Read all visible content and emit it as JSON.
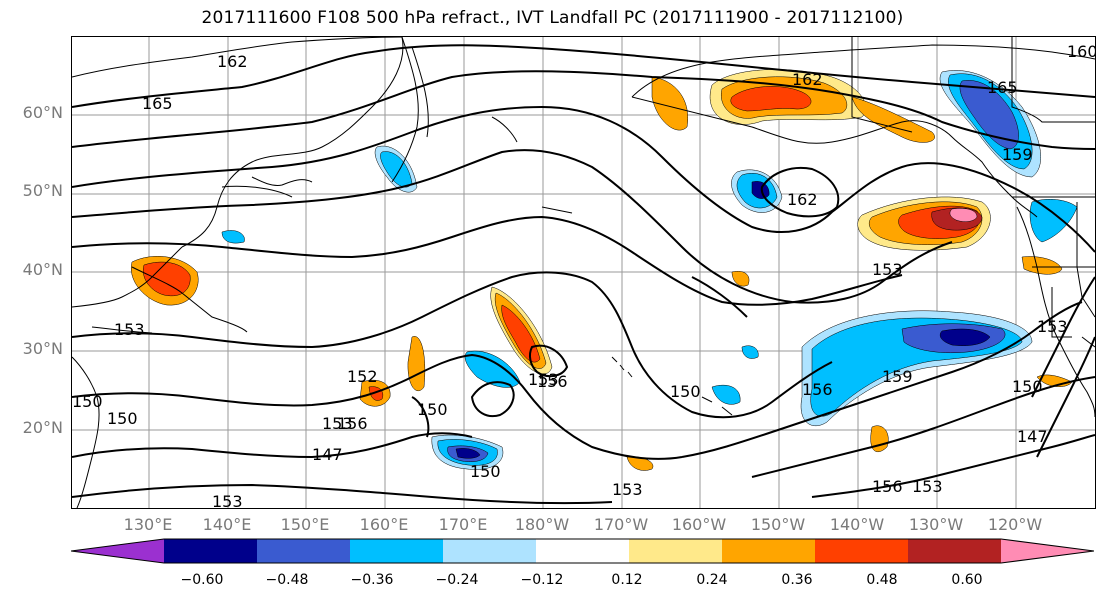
{
  "title": "2017111600 F108 500 hPa refract., IVT Landfall PC (2017111900 - 2017112100)",
  "latitude_labels": [
    "60°N",
    "50°N",
    "40°N",
    "30°N",
    "20°N"
  ],
  "longitude_labels": [
    "130°E",
    "140°E",
    "150°E",
    "160°E",
    "170°E",
    "180°W",
    "170°W",
    "160°W",
    "150°W",
    "140°W",
    "130°W",
    "120°W"
  ],
  "contour_labels": [
    "162",
    "165",
    "162",
    "165",
    "159",
    "162",
    "153",
    "153",
    "156",
    "153",
    "150",
    "152",
    "156",
    "150",
    "150",
    "153",
    "150",
    "147",
    "153",
    "156",
    "159",
    "150",
    "147",
    "153",
    "156",
    "153",
    "160",
    "150",
    "153"
  ],
  "colorbar": {
    "ticks": [
      "−0.60",
      "−0.48",
      "−0.36",
      "−0.24",
      "−0.12",
      "0.12",
      "0.24",
      "0.36",
      "0.48",
      "0.60"
    ],
    "colors": [
      "#9b30d0",
      "#00008b",
      "#3a5bd0",
      "#00bfff",
      "#aee3ff",
      "#ffffff",
      "#ffe98a",
      "#ffa500",
      "#ff4000",
      "#b22222",
      "#ff8cb4"
    ]
  },
  "shading_colors": {
    "pos_light": "#ffe98a",
    "pos_orange": "#ffa500",
    "pos_red": "#ff4000",
    "pos_dark": "#b22222",
    "pos_pink": "#ff8cb4",
    "neg_light": "#aee3ff",
    "neg_cyan": "#00bfff",
    "neg_blue": "#3a5bd0",
    "neg_navy": "#00008b"
  }
}
